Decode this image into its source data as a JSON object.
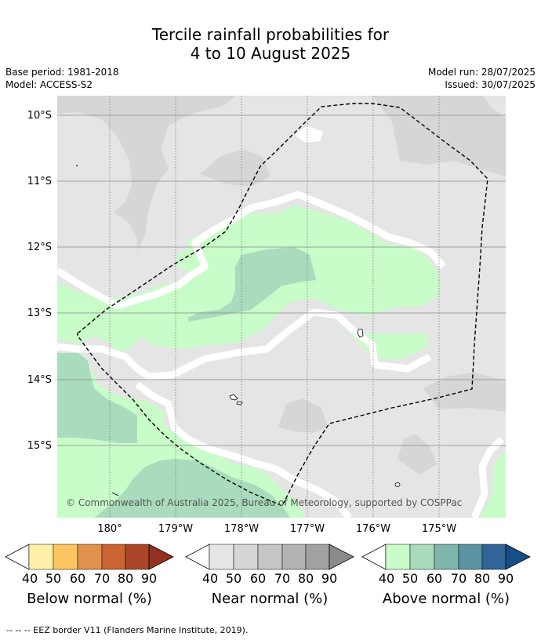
{
  "title_line1": "Tercile rainfall probabilities for",
  "title_line2": "4 to 10 August 2025",
  "base_period": "Base period: 1981-2018",
  "model": "Model: ACCESS-S2",
  "model_run": "Model run: 28/07/2025",
  "issued": "Issued: 30/07/2025",
  "lat_labels": [
    "10°S",
    "11°S",
    "12°S",
    "13°S",
    "14°S",
    "15°S"
  ],
  "lon_labels": [
    "180°",
    "179°W",
    "178°W",
    "177°W",
    "176°W",
    "175°W"
  ],
  "copyright": "© Commonwealth of Australia 2025, Bureau of Meteorology, supported by COSPPac",
  "colorbars": [
    {
      "title": "Below normal (%)",
      "ticks": [
        "40",
        "50",
        "60",
        "70",
        "80",
        "90"
      ],
      "colors": [
        "#fff0a8",
        "#fdc55f",
        "#e0914b",
        "#cc6532",
        "#ab4627",
        "#93301f"
      ]
    },
    {
      "title": "Near normal (%)",
      "ticks": [
        "40",
        "50",
        "60",
        "70",
        "80",
        "90"
      ],
      "colors": [
        "#e5e5e5",
        "#d6d6d6",
        "#c6c6c6",
        "#b3b3b3",
        "#a1a1a1",
        "#8a8a8a"
      ]
    },
    {
      "title": "Above normal (%)",
      "ticks": [
        "40",
        "50",
        "60",
        "70",
        "80",
        "90"
      ],
      "colors": [
        "#c8fcc8",
        "#a8dcbc",
        "#7fb5ad",
        "#5b95a3",
        "#2f6599",
        "#164f85"
      ]
    }
  ],
  "footnote": "--  --  -- EEZ border V11 (Flanders Marine Institute, 2019)."
}
